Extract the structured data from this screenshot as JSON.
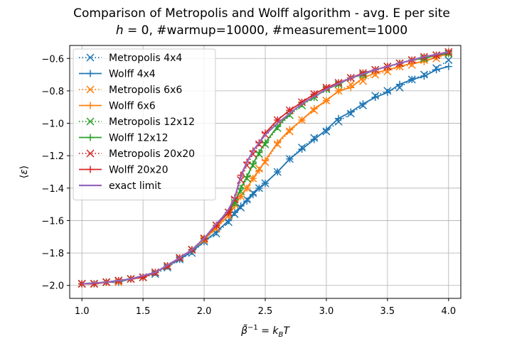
{
  "chart_data": {
    "type": "line",
    "title": "Comparison of Metropolis and Wolff algorithm - avg. E per site",
    "subtitle": "h = 0, #warmup=10000, #measurement=1000",
    "xlabel": "β̃⁻¹ = k_B T",
    "ylabel": "⟨ε⟩",
    "xlim": [
      0.9,
      4.1
    ],
    "ylim": [
      -2.08,
      -0.52
    ],
    "xticks": [
      1.0,
      1.5,
      2.0,
      2.5,
      3.0,
      3.5,
      4.0
    ],
    "xtick_labels": [
      "1.0",
      "1.5",
      "2.0",
      "2.5",
      "3.0",
      "3.5",
      "4.0"
    ],
    "yticks": [
      -2.0,
      -1.8,
      -1.6,
      -1.4,
      -1.2,
      -1.0,
      -0.8,
      -0.6
    ],
    "ytick_labels": [
      "−2.0",
      "−1.8",
      "−1.6",
      "−1.4",
      "−1.2",
      "−1.0",
      "−0.8",
      "−0.6"
    ],
    "grid": true,
    "legend_position": "upper-left",
    "series": [
      {
        "name": "Metropolis 4x4",
        "color": "#1f77b4",
        "marker": "x",
        "linestyle": "dotted",
        "x": [
          1.0,
          1.1,
          1.2,
          1.3,
          1.4,
          1.5,
          1.6,
          1.7,
          1.8,
          1.9,
          2.0,
          2.1,
          2.2,
          2.25,
          2.3,
          2.35,
          2.4,
          2.45,
          2.5,
          2.6,
          2.7,
          2.8,
          2.9,
          3.0,
          3.1,
          3.2,
          3.3,
          3.4,
          3.5,
          3.6,
          3.7,
          3.8,
          3.9,
          4.0
        ],
        "y": [
          -1.99,
          -1.99,
          -1.98,
          -1.97,
          -1.96,
          -1.95,
          -1.93,
          -1.89,
          -1.84,
          -1.8,
          -1.73,
          -1.68,
          -1.61,
          -1.56,
          -1.52,
          -1.47,
          -1.43,
          -1.4,
          -1.37,
          -1.3,
          -1.22,
          -1.15,
          -1.09,
          -1.05,
          -0.99,
          -0.94,
          -0.89,
          -0.83,
          -0.8,
          -0.78,
          -0.73,
          -0.7,
          -0.66,
          -0.61
        ]
      },
      {
        "name": "Wolff 4x4",
        "color": "#1f77b4",
        "marker": "+",
        "linestyle": "solid",
        "x": [
          1.0,
          1.1,
          1.2,
          1.3,
          1.4,
          1.5,
          1.6,
          1.7,
          1.8,
          1.9,
          2.0,
          2.1,
          2.2,
          2.25,
          2.3,
          2.35,
          2.4,
          2.45,
          2.5,
          2.6,
          2.7,
          2.8,
          2.9,
          3.0,
          3.1,
          3.2,
          3.3,
          3.4,
          3.5,
          3.6,
          3.7,
          3.8,
          3.9,
          4.0
        ],
        "y": [
          -1.99,
          -1.99,
          -1.98,
          -1.98,
          -1.96,
          -1.95,
          -1.92,
          -1.88,
          -1.84,
          -1.79,
          -1.73,
          -1.67,
          -1.6,
          -1.55,
          -1.51,
          -1.48,
          -1.44,
          -1.4,
          -1.37,
          -1.3,
          -1.22,
          -1.16,
          -1.1,
          -1.04,
          -0.97,
          -0.93,
          -0.88,
          -0.84,
          -0.81,
          -0.76,
          -0.73,
          -0.71,
          -0.67,
          -0.65
        ]
      },
      {
        "name": "Metropolis 6x6",
        "color": "#ff7f0e",
        "marker": "x",
        "linestyle": "dotted",
        "x": [
          1.0,
          1.1,
          1.2,
          1.3,
          1.4,
          1.5,
          1.6,
          1.7,
          1.8,
          1.9,
          2.0,
          2.1,
          2.2,
          2.25,
          2.3,
          2.35,
          2.4,
          2.45,
          2.5,
          2.6,
          2.7,
          2.8,
          2.9,
          3.0,
          3.1,
          3.2,
          3.3,
          3.4,
          3.5,
          3.6,
          3.7,
          3.8,
          3.9,
          4.0
        ],
        "y": [
          -1.99,
          -1.99,
          -1.98,
          -1.98,
          -1.96,
          -1.95,
          -1.92,
          -1.88,
          -1.83,
          -1.78,
          -1.72,
          -1.65,
          -1.57,
          -1.5,
          -1.45,
          -1.4,
          -1.34,
          -1.28,
          -1.24,
          -1.13,
          -1.05,
          -0.98,
          -0.92,
          -0.86,
          -0.8,
          -0.76,
          -0.74,
          -0.7,
          -0.68,
          -0.65,
          -0.64,
          -0.61,
          -0.6,
          -0.57
        ]
      },
      {
        "name": "Wolff 6x6",
        "color": "#ff7f0e",
        "marker": "+",
        "linestyle": "solid",
        "x": [
          1.0,
          1.1,
          1.2,
          1.3,
          1.4,
          1.5,
          1.6,
          1.7,
          1.8,
          1.9,
          2.0,
          2.1,
          2.2,
          2.25,
          2.3,
          2.35,
          2.4,
          2.45,
          2.5,
          2.6,
          2.7,
          2.8,
          2.9,
          3.0,
          3.1,
          3.2,
          3.3,
          3.4,
          3.5,
          3.6,
          3.7,
          3.8,
          3.9,
          4.0
        ],
        "y": [
          -1.99,
          -1.99,
          -1.98,
          -1.97,
          -1.96,
          -1.95,
          -1.92,
          -1.88,
          -1.83,
          -1.78,
          -1.72,
          -1.64,
          -1.57,
          -1.51,
          -1.45,
          -1.4,
          -1.34,
          -1.29,
          -1.23,
          -1.12,
          -1.04,
          -0.98,
          -0.91,
          -0.86,
          -0.8,
          -0.78,
          -0.72,
          -0.69,
          -0.67,
          -0.65,
          -0.63,
          -0.62,
          -0.59,
          -0.57
        ]
      },
      {
        "name": "Metropolis 12x12",
        "color": "#2ca02c",
        "marker": "x",
        "linestyle": "dotted",
        "x": [
          1.0,
          1.1,
          1.2,
          1.3,
          1.4,
          1.5,
          1.6,
          1.7,
          1.8,
          1.9,
          2.0,
          2.1,
          2.2,
          2.25,
          2.3,
          2.35,
          2.4,
          2.45,
          2.5,
          2.6,
          2.7,
          2.8,
          2.9,
          3.0,
          3.1,
          3.2,
          3.3,
          3.4,
          3.5,
          3.6,
          3.7,
          3.8,
          3.9,
          4.0
        ],
        "y": [
          -1.99,
          -1.99,
          -1.98,
          -1.97,
          -1.96,
          -1.95,
          -1.92,
          -1.88,
          -1.83,
          -1.78,
          -1.71,
          -1.63,
          -1.55,
          -1.49,
          -1.42,
          -1.34,
          -1.26,
          -1.19,
          -1.13,
          -1.03,
          -0.95,
          -0.89,
          -0.84,
          -0.79,
          -0.76,
          -0.72,
          -0.7,
          -0.67,
          -0.65,
          -0.63,
          -0.61,
          -0.6,
          -0.58,
          -0.57
        ]
      },
      {
        "name": "Wolff 12x12",
        "color": "#2ca02c",
        "marker": "+",
        "linestyle": "solid",
        "x": [
          1.0,
          1.1,
          1.2,
          1.3,
          1.4,
          1.5,
          1.6,
          1.7,
          1.8,
          1.9,
          2.0,
          2.1,
          2.2,
          2.25,
          2.3,
          2.35,
          2.4,
          2.45,
          2.5,
          2.6,
          2.7,
          2.8,
          2.9,
          3.0,
          3.1,
          3.2,
          3.3,
          3.4,
          3.5,
          3.6,
          3.7,
          3.8,
          3.9,
          4.0
        ],
        "y": [
          -1.99,
          -1.99,
          -1.98,
          -1.97,
          -1.96,
          -1.95,
          -1.92,
          -1.88,
          -1.83,
          -1.78,
          -1.71,
          -1.63,
          -1.55,
          -1.49,
          -1.4,
          -1.33,
          -1.25,
          -1.18,
          -1.12,
          -1.02,
          -0.94,
          -0.88,
          -0.84,
          -0.79,
          -0.76,
          -0.72,
          -0.7,
          -0.67,
          -0.65,
          -0.63,
          -0.61,
          -0.6,
          -0.58,
          -0.57
        ]
      },
      {
        "name": "Metropolis 20x20",
        "color": "#d62728",
        "marker": "x",
        "linestyle": "dotted",
        "x": [
          1.0,
          1.1,
          1.2,
          1.3,
          1.4,
          1.5,
          1.6,
          1.7,
          1.8,
          1.9,
          2.0,
          2.1,
          2.2,
          2.25,
          2.3,
          2.35,
          2.4,
          2.45,
          2.5,
          2.6,
          2.7,
          2.8,
          2.9,
          3.0,
          3.1,
          3.2,
          3.3,
          3.4,
          3.5,
          3.6,
          3.7,
          3.8,
          3.9,
          4.0
        ],
        "y": [
          -1.99,
          -1.99,
          -1.98,
          -1.97,
          -1.96,
          -1.95,
          -1.92,
          -1.88,
          -1.83,
          -1.78,
          -1.71,
          -1.63,
          -1.55,
          -1.47,
          -1.35,
          -1.26,
          -1.19,
          -1.13,
          -1.07,
          -0.98,
          -0.92,
          -0.87,
          -0.82,
          -0.78,
          -0.75,
          -0.72,
          -0.69,
          -0.67,
          -0.65,
          -0.63,
          -0.61,
          -0.59,
          -0.58,
          -0.56
        ]
      },
      {
        "name": "Wolff 20x20",
        "color": "#d62728",
        "marker": "+",
        "linestyle": "solid",
        "x": [
          1.0,
          1.1,
          1.2,
          1.3,
          1.4,
          1.5,
          1.6,
          1.7,
          1.8,
          1.9,
          2.0,
          2.1,
          2.2,
          2.25,
          2.3,
          2.35,
          2.4,
          2.45,
          2.5,
          2.6,
          2.7,
          2.8,
          2.9,
          3.0,
          3.1,
          3.2,
          3.3,
          3.4,
          3.5,
          3.6,
          3.7,
          3.8,
          3.9,
          4.0
        ],
        "y": [
          -1.99,
          -1.99,
          -1.98,
          -1.97,
          -1.96,
          -1.95,
          -1.92,
          -1.88,
          -1.83,
          -1.78,
          -1.71,
          -1.63,
          -1.55,
          -1.46,
          -1.32,
          -1.24,
          -1.17,
          -1.12,
          -1.06,
          -0.98,
          -0.92,
          -0.87,
          -0.82,
          -0.78,
          -0.75,
          -0.72,
          -0.69,
          -0.67,
          -0.65,
          -0.63,
          -0.61,
          -0.59,
          -0.58,
          -0.56
        ]
      },
      {
        "name": "exact limit",
        "color": "#9467bd",
        "marker": "none",
        "linestyle": "solid",
        "x": [
          1.0,
          1.2,
          1.4,
          1.6,
          1.8,
          1.9,
          2.0,
          2.1,
          2.15,
          2.2,
          2.25,
          2.269,
          2.3,
          2.35,
          2.4,
          2.5,
          2.6,
          2.8,
          3.0,
          3.2,
          3.4,
          3.6,
          3.8,
          4.0
        ],
        "y": [
          -1.99,
          -1.98,
          -1.96,
          -1.92,
          -1.83,
          -1.78,
          -1.71,
          -1.62,
          -1.58,
          -1.53,
          -1.46,
          -1.41,
          -1.33,
          -1.24,
          -1.17,
          -1.07,
          -1.0,
          -0.88,
          -0.79,
          -0.72,
          -0.67,
          -0.63,
          -0.59,
          -0.56
        ]
      }
    ]
  }
}
